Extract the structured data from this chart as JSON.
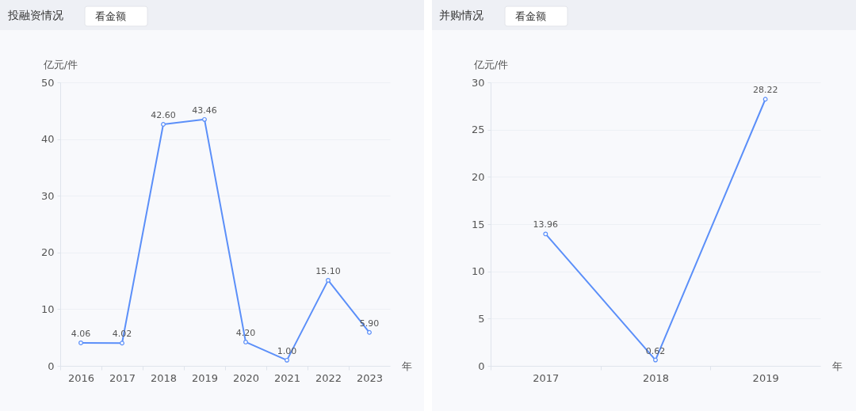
{
  "chart_data": [
    {
      "type": "line",
      "title": "投融资情况",
      "annotations": [
        "看金额"
      ],
      "ylabel": "亿元/件",
      "xlabel": "年",
      "categories": [
        "2016",
        "2017",
        "2018",
        "2019",
        "2020",
        "2021",
        "2022",
        "2023"
      ],
      "values": [
        4.06,
        4.02,
        42.6,
        43.46,
        4.2,
        1.0,
        15.1,
        5.9
      ],
      "value_labels": [
        "4.06",
        "4.02",
        "42.60",
        "43.46",
        "4.20",
        "1.00",
        "15.10",
        "5.90"
      ],
      "color": "#5b8ff9",
      "marker": "circle",
      "grid": "y",
      "ylim": [
        0,
        50
      ],
      "yticks": [
        0,
        10,
        20,
        30,
        40,
        50
      ]
    },
    {
      "type": "line",
      "title": "并购情况",
      "annotations": [
        "看金额"
      ],
      "ylabel": "亿元/件",
      "xlabel": "年",
      "categories": [
        "2017",
        "2018",
        "2019"
      ],
      "values": [
        13.96,
        0.62,
        28.22
      ],
      "value_labels": [
        "13.96",
        "0.62",
        "28.22"
      ],
      "color": "#5b8ff9",
      "marker": "circle",
      "grid": "y",
      "ylim": [
        0,
        30
      ],
      "yticks": [
        0,
        5,
        10,
        15,
        20,
        25,
        30
      ]
    }
  ]
}
